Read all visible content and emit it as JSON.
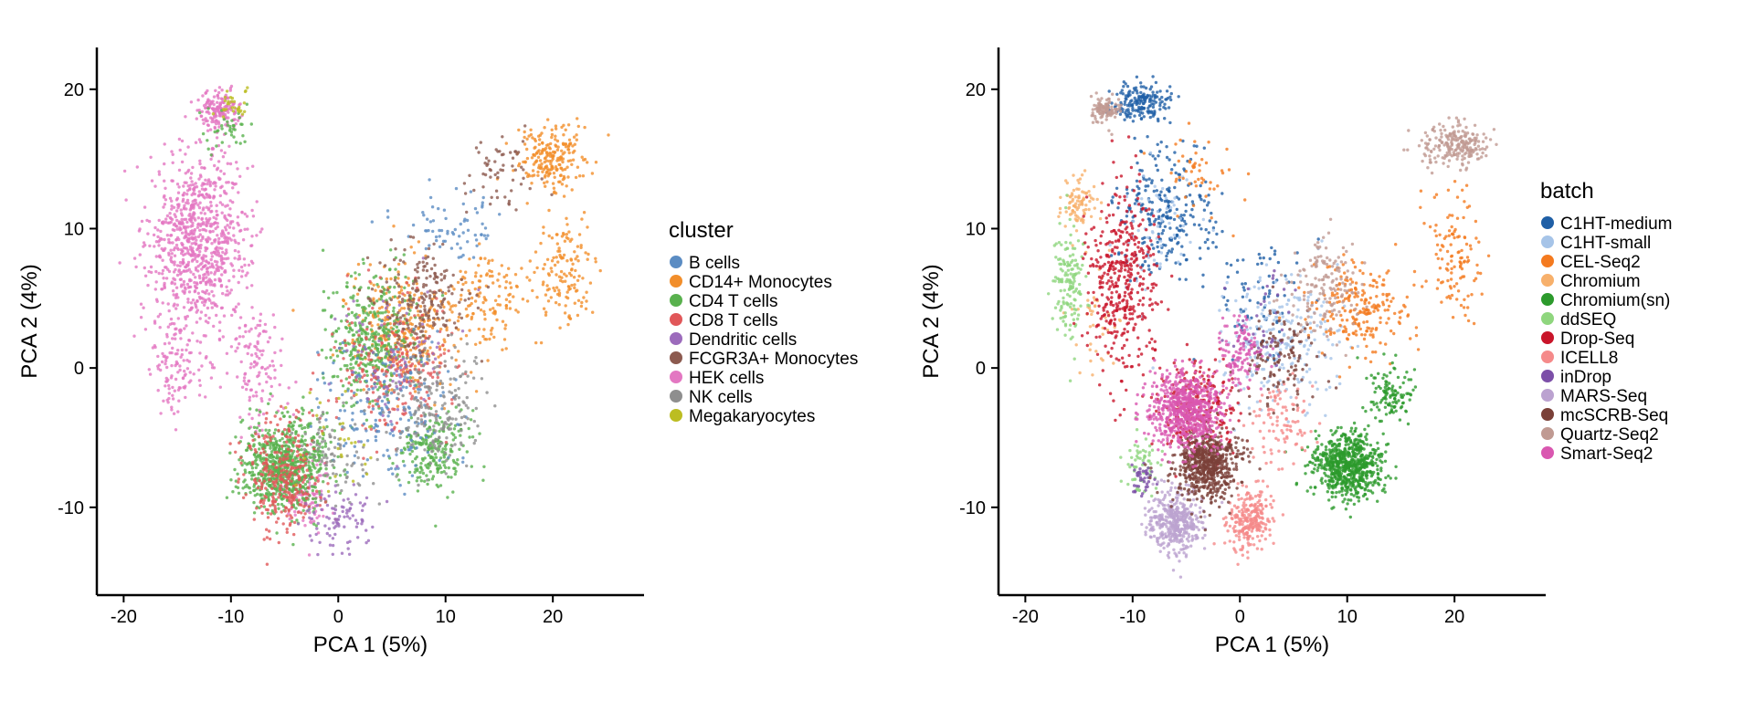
{
  "chart_data": [
    {
      "type": "scatter",
      "xlabel": "PCA 1 (5%)",
      "ylabel": "PCA 2 (4%)",
      "xlim": [
        -22.5,
        28.5
      ],
      "ylim": [
        -16.3,
        23.0
      ],
      "xticks": [
        -20,
        -10,
        0,
        10,
        20
      ],
      "yticks": [
        -10,
        0,
        10,
        20
      ],
      "grid": false,
      "legend": {
        "position": "right",
        "title": "cluster",
        "entries": [
          {
            "name": "B cells",
            "color": "#5B8CC3"
          },
          {
            "name": "CD14+ Monocytes",
            "color": "#F28E2B"
          },
          {
            "name": "CD4 T cells",
            "color": "#59B14E"
          },
          {
            "name": "CD8 T cells",
            "color": "#E15759"
          },
          {
            "name": "Dendritic cells",
            "color": "#9C6BBC"
          },
          {
            "name": "FCGR3A+ Monocytes",
            "color": "#8C5A4F"
          },
          {
            "name": "HEK cells",
            "color": "#E377C2"
          },
          {
            "name": "NK cells",
            "color": "#8E8E8E"
          },
          {
            "name": "Megakaryocytes",
            "color": "#BCBD22"
          }
        ]
      },
      "series": [
        {
          "name": "HEK cells",
          "regions": [
            {
              "center": [
                -13,
                9
              ],
              "spread": [
                4.2,
                6.0
              ],
              "n": 900
            },
            {
              "center": [
                -11,
                18.5
              ],
              "spread": [
                1.8,
                1.2
              ],
              "n": 160
            },
            {
              "center": [
                -7.5,
                0
              ],
              "spread": [
                2.5,
                4
              ],
              "n": 120
            },
            {
              "center": [
                -3,
                -9
              ],
              "spread": [
                2,
                2.5
              ],
              "n": 90
            },
            {
              "center": [
                -15,
                0
              ],
              "spread": [
                2,
                3
              ],
              "n": 100
            }
          ]
        },
        {
          "name": "CD14+ Monocytes",
          "regions": [
            {
              "center": [
                20,
                15
              ],
              "spread": [
                3,
                2.2
              ],
              "n": 220
            },
            {
              "center": [
                21,
                7
              ],
              "spread": [
                2.5,
                3.5
              ],
              "n": 140
            },
            {
              "center": [
                6,
                3
              ],
              "spread": [
                5,
                4
              ],
              "n": 320
            },
            {
              "center": [
                14,
                5
              ],
              "spread": [
                3,
                3
              ],
              "n": 120
            }
          ]
        },
        {
          "name": "CD4 T cells",
          "regions": [
            {
              "center": [
                -5,
                -7
              ],
              "spread": [
                3.5,
                3.0
              ],
              "n": 750
            },
            {
              "center": [
                3,
                2
              ],
              "spread": [
                4,
                4
              ],
              "n": 380
            },
            {
              "center": [
                9,
                -6
              ],
              "spread": [
                3,
                2.5
              ],
              "n": 220
            },
            {
              "center": [
                -10,
                17
              ],
              "spread": [
                2,
                1.5
              ],
              "n": 40
            }
          ]
        },
        {
          "name": "CD8 T cells",
          "regions": [
            {
              "center": [
                -5,
                -8
              ],
              "spread": [
                3.5,
                3.5
              ],
              "n": 300
            },
            {
              "center": [
                5,
                0
              ],
              "spread": [
                5,
                4.5
              ],
              "n": 260
            }
          ]
        },
        {
          "name": "B cells",
          "regions": [
            {
              "center": [
                5,
                -3
              ],
              "spread": [
                5,
                5
              ],
              "n": 200
            },
            {
              "center": [
                10,
                10
              ],
              "spread": [
                4,
                2.5
              ],
              "n": 70
            }
          ]
        },
        {
          "name": "Dendritic cells",
          "regions": [
            {
              "center": [
                0,
                -11
              ],
              "spread": [
                3,
                2
              ],
              "n": 90
            },
            {
              "center": [
                5,
                0
              ],
              "spread": [
                5,
                5
              ],
              "n": 80
            }
          ]
        },
        {
          "name": "FCGR3A+ Monocytes",
          "regions": [
            {
              "center": [
                8,
                5
              ],
              "spread": [
                4,
                3.5
              ],
              "n": 200
            },
            {
              "center": [
                15,
                14
              ],
              "spread": [
                3,
                2.5
              ],
              "n": 60
            }
          ]
        },
        {
          "name": "NK cells",
          "regions": [
            {
              "center": [
                9,
                -3
              ],
              "spread": [
                4,
                4
              ],
              "n": 200
            },
            {
              "center": [
                0,
                -6
              ],
              "spread": [
                3,
                3
              ],
              "n": 80
            }
          ]
        },
        {
          "name": "Megakaryocytes",
          "regions": [
            {
              "center": [
                -10,
                19
              ],
              "spread": [
                1.5,
                1
              ],
              "n": 30
            },
            {
              "center": [
                0,
                -5
              ],
              "spread": [
                4,
                4
              ],
              "n": 30
            }
          ]
        }
      ]
    },
    {
      "type": "scatter",
      "xlabel": "PCA 1 (5%)",
      "ylabel": "PCA 2 (4%)",
      "xlim": [
        -22.5,
        28.5
      ],
      "ylim": [
        -16.3,
        23.0
      ],
      "xticks": [
        -20,
        -10,
        0,
        10,
        20
      ],
      "yticks": [
        -10,
        0,
        10,
        20
      ],
      "grid": false,
      "legend": {
        "position": "right",
        "title": "batch",
        "entries": [
          {
            "name": "C1HT-medium",
            "color": "#1F5FA6"
          },
          {
            "name": "C1HT-small",
            "color": "#A6C4E8"
          },
          {
            "name": "CEL-Seq2",
            "color": "#F47A1F"
          },
          {
            "name": "Chromium",
            "color": "#F7B06B"
          },
          {
            "name": "Chromium(sn)",
            "color": "#2C9A2C"
          },
          {
            "name": "ddSEQ",
            "color": "#8FD67E"
          },
          {
            "name": "Drop-Seq",
            "color": "#C9152A"
          },
          {
            "name": "ICELL8",
            "color": "#F58A8A"
          },
          {
            "name": "inDrop",
            "color": "#7C4FA8"
          },
          {
            "name": "MARS-Seq",
            "color": "#BBA2D0"
          },
          {
            "name": "mcSCRB-Seq",
            "color": "#7A4038"
          },
          {
            "name": "Quartz-Seq2",
            "color": "#C09A92"
          },
          {
            "name": "Smart-Seq2",
            "color": "#D957B0"
          }
        ]
      },
      "series": [
        {
          "name": "C1HT-medium",
          "regions": [
            {
              "center": [
                -9,
                19
              ],
              "spread": [
                2.5,
                1.3
              ],
              "n": 180
            },
            {
              "center": [
                -7,
                11
              ],
              "spread": [
                4,
                4.5
              ],
              "n": 260
            },
            {
              "center": [
                2,
                5
              ],
              "spread": [
                4,
                4
              ],
              "n": 80
            }
          ]
        },
        {
          "name": "C1HT-small",
          "regions": [
            {
              "center": [
                4,
                2
              ],
              "spread": [
                5,
                4
              ],
              "n": 220
            },
            {
              "center": [
                -8,
                10
              ],
              "spread": [
                4,
                4
              ],
              "n": 60
            }
          ]
        },
        {
          "name": "CEL-Seq2",
          "regions": [
            {
              "center": [
                11,
                4
              ],
              "spread": [
                4,
                3
              ],
              "n": 220
            },
            {
              "center": [
                20,
                8
              ],
              "spread": [
                2.5,
                4
              ],
              "n": 120
            },
            {
              "center": [
                -4,
                14
              ],
              "spread": [
                3,
                3
              ],
              "n": 50
            }
          ]
        },
        {
          "name": "Chromium",
          "regions": [
            {
              "center": [
                -15,
                12
              ],
              "spread": [
                1.5,
                2
              ],
              "n": 90
            },
            {
              "center": [
                -13,
                3
              ],
              "spread": [
                2,
                4
              ],
              "n": 40
            }
          ]
        },
        {
          "name": "Chromium(sn)",
          "regions": [
            {
              "center": [
                10,
                -7
              ],
              "spread": [
                3,
                2.2
              ],
              "n": 700
            },
            {
              "center": [
                14,
                -2
              ],
              "spread": [
                2,
                2
              ],
              "n": 120
            }
          ]
        },
        {
          "name": "ddSEQ",
          "regions": [
            {
              "center": [
                -16,
                6
              ],
              "spread": [
                1.5,
                4
              ],
              "n": 150
            },
            {
              "center": [
                -9,
                -7
              ],
              "spread": [
                1.5,
                2
              ],
              "n": 60
            }
          ]
        },
        {
          "name": "Drop-Seq",
          "regions": [
            {
              "center": [
                -11,
                6
              ],
              "spread": [
                3,
                6
              ],
              "n": 420
            },
            {
              "center": [
                -4,
                -3
              ],
              "spread": [
                3,
                3
              ],
              "n": 260
            }
          ]
        },
        {
          "name": "ICELL8",
          "regions": [
            {
              "center": [
                1,
                -11
              ],
              "spread": [
                2,
                2
              ],
              "n": 260
            },
            {
              "center": [
                4,
                -4
              ],
              "spread": [
                3,
                3
              ],
              "n": 100
            }
          ]
        },
        {
          "name": "inDrop",
          "regions": [
            {
              "center": [
                -9,
                -8
              ],
              "spread": [
                1,
                1
              ],
              "n": 40
            },
            {
              "center": [
                2,
                3
              ],
              "spread": [
                3,
                3
              ],
              "n": 40
            }
          ]
        },
        {
          "name": "MARS-Seq",
          "regions": [
            {
              "center": [
                -6,
                -11
              ],
              "spread": [
                2.2,
                2
              ],
              "n": 420
            }
          ]
        },
        {
          "name": "mcSCRB-Seq",
          "regions": [
            {
              "center": [
                -3,
                -7
              ],
              "spread": [
                2.8,
                2.2
              ],
              "n": 620
            },
            {
              "center": [
                4,
                1
              ],
              "spread": [
                3,
                3
              ],
              "n": 120
            }
          ]
        },
        {
          "name": "Quartz-Seq2",
          "regions": [
            {
              "center": [
                20,
                16
              ],
              "spread": [
                3,
                1.5
              ],
              "n": 220
            },
            {
              "center": [
                -12.5,
                18.5
              ],
              "spread": [
                1.2,
                0.8
              ],
              "n": 110
            },
            {
              "center": [
                8,
                6
              ],
              "spread": [
                3,
                3
              ],
              "n": 150
            }
          ]
        },
        {
          "name": "Smart-Seq2",
          "regions": [
            {
              "center": [
                -5,
                -3
              ],
              "spread": [
                3,
                2.5
              ],
              "n": 700
            },
            {
              "center": [
                0,
                1
              ],
              "spread": [
                2,
                2
              ],
              "n": 120
            }
          ]
        }
      ]
    }
  ]
}
